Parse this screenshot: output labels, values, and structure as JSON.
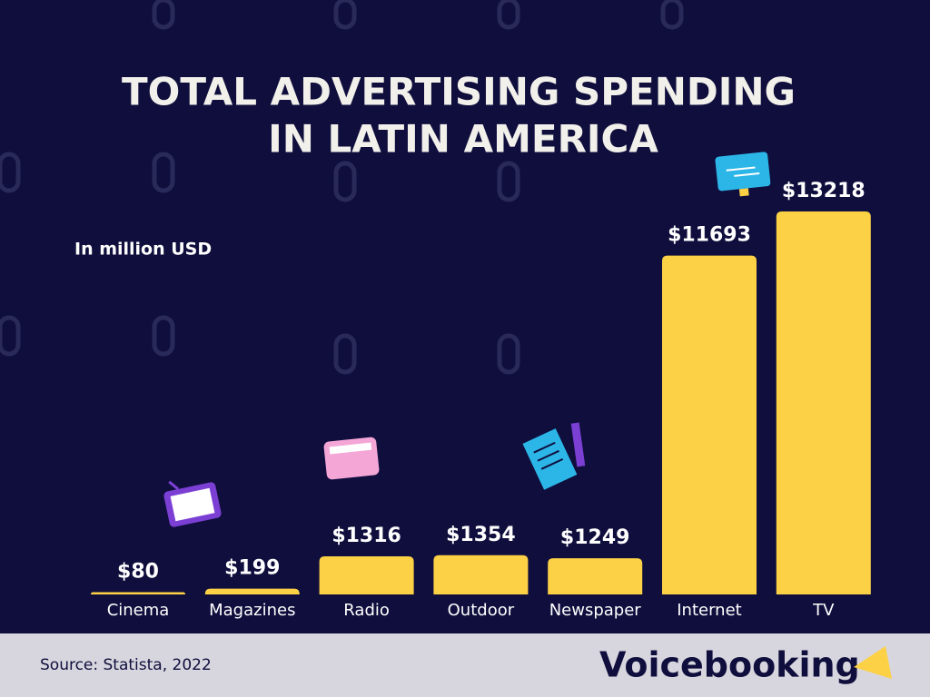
{
  "chart_data": {
    "type": "bar",
    "title": [
      "TOTAL ADVERTISING SPENDING",
      "IN LATIN AMERICA"
    ],
    "subtitle": "In million USD",
    "categories": [
      "Cinema",
      "Magazines",
      "Radio",
      "Outdoor",
      "Newspaper",
      "Internet",
      "TV"
    ],
    "values": [
      80,
      199,
      1316,
      1354,
      1249,
      11693,
      13218
    ],
    "value_labels": [
      "$80",
      "$199",
      "$1316",
      "$1354",
      "$1249",
      "$11693",
      "$13218"
    ],
    "color": "#fdd145",
    "source": "Source: Statista, 2022"
  },
  "logo": "Voicebooking"
}
